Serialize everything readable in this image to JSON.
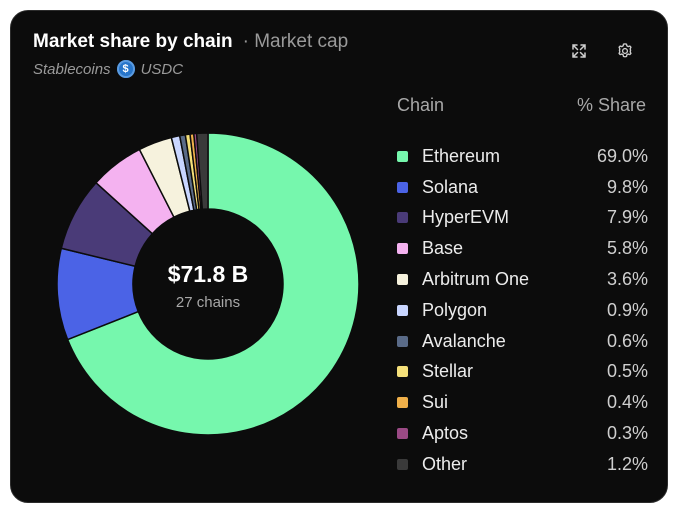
{
  "header": {
    "title": "Market share by chain",
    "subtitle": "· Market cap",
    "category": "Stablecoins",
    "asset": "USDC",
    "asset_icon": "usdc-coin-icon",
    "expand_icon": "expand-icon",
    "settings_icon": "gear-icon"
  },
  "center": {
    "value": "$71.8 B",
    "label": "27 chains"
  },
  "legend": {
    "chain_header": "Chain",
    "share_header": "% Share"
  },
  "chart_data": {
    "type": "pie",
    "donut": true,
    "categories": [
      "Ethereum",
      "Solana",
      "HyperEVM",
      "Base",
      "Arbitrum One",
      "Polygon",
      "Avalanche",
      "Stellar",
      "Sui",
      "Aptos",
      "Other"
    ],
    "values": [
      69.0,
      9.8,
      7.9,
      5.8,
      3.6,
      0.9,
      0.6,
      0.5,
      0.4,
      0.3,
      1.2
    ],
    "labels": [
      "69.0%",
      "9.8%",
      "7.9%",
      "5.8%",
      "3.6%",
      "0.9%",
      "0.6%",
      "0.5%",
      "0.4%",
      "0.3%",
      "1.2%"
    ],
    "colors": [
      "#76f7ad",
      "#4b63e6",
      "#4a3b78",
      "#f4b2f0",
      "#f6f2dd",
      "#c9d6ff",
      "#5a6b88",
      "#f5e07a",
      "#f0b04a",
      "#9b4a85",
      "#3a3a3a"
    ],
    "legend_position": "right"
  }
}
